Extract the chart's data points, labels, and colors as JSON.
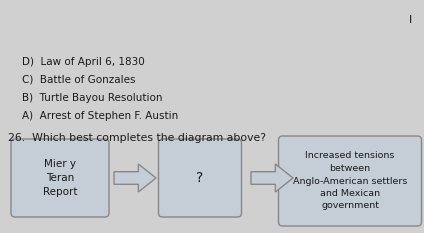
{
  "background_color": "#d0d0d0",
  "box1_text": "Mier y\nTeran\nReport",
  "box2_text": "?",
  "box3_text": "Increased tensions\nbetween\nAnglo-American settlers\nand Mexican\ngovernment",
  "question_text": "26.  Which best completes the diagram above?",
  "options": [
    "A)  Arrest of Stephen F. Austin",
    "B)  Turtle Bayou Resolution",
    "C)  Battle of Gonzales",
    "D)  Law of April 6, 1830"
  ],
  "box_facecolor": "#c5cdd6",
  "box_edgecolor": "#888888",
  "text_color": "#1a1a1a",
  "arrow_face": "#c5cdd6",
  "arrow_edge": "#888888"
}
